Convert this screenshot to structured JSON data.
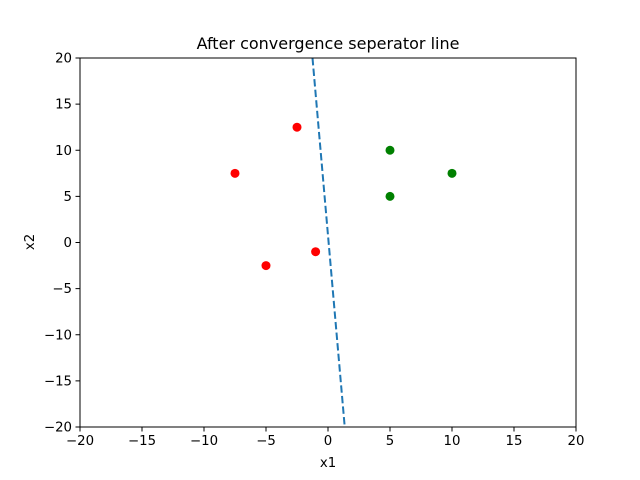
{
  "chart_data": {
    "type": "scatter",
    "title": "After convergence seperator line",
    "xlabel": "x1",
    "ylabel": "x2",
    "xlim": [
      -20,
      20
    ],
    "ylim": [
      -20,
      20
    ],
    "xticks": [
      -20,
      -15,
      -10,
      -5,
      0,
      5,
      10,
      15,
      20
    ],
    "yticks": [
      -20,
      -15,
      -10,
      -5,
      0,
      5,
      10,
      15,
      20
    ],
    "xtick_labels": [
      "−20",
      "−15",
      "−10",
      "−5",
      "0",
      "5",
      "10",
      "15",
      "20"
    ],
    "ytick_labels": [
      "−20",
      "−15",
      "−10",
      "−5",
      "0",
      "5",
      "10",
      "15",
      "20"
    ],
    "grid": false,
    "series": [
      {
        "color": "#ff0000",
        "marker": "circle",
        "points": [
          {
            "x": -7.5,
            "y": 7.5
          },
          {
            "x": -2.5,
            "y": 12.5
          },
          {
            "x": -5,
            "y": -2.5
          },
          {
            "x": -1,
            "y": -1
          }
        ]
      },
      {
        "color": "#008000",
        "marker": "circle",
        "points": [
          {
            "x": 5,
            "y": 10
          },
          {
            "x": 5,
            "y": 5
          },
          {
            "x": 10,
            "y": 7.5
          }
        ]
      }
    ],
    "separator_line": {
      "color": "#1f77b4",
      "style": "dashed",
      "points": [
        {
          "x": -1.25,
          "y": 20
        },
        {
          "x": 1.35,
          "y": -20
        }
      ]
    }
  }
}
